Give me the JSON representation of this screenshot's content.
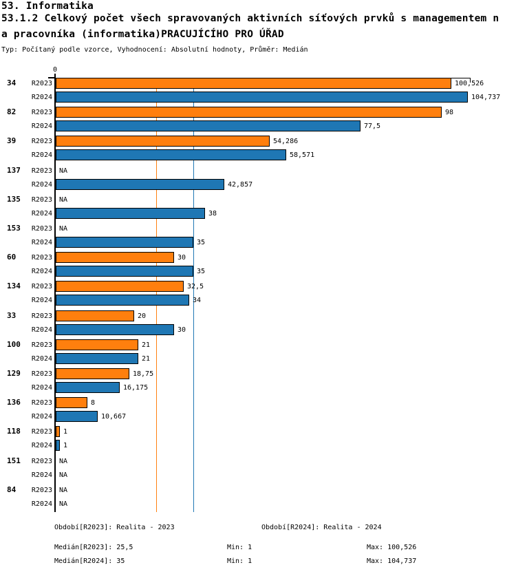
{
  "header": {
    "title": "53. Informatika",
    "subtitle_line1": "53.1.2 Celkový počet všech spravovaných aktivních síťových prvků s managementem n",
    "subtitle_line2": "a pracovníka (informatika)PRACUJÍCÍHO PRO ÚŘAD",
    "meta": "Typ: Počítaný podle vzorce, Vyhodnocení: Absolutní hodnoty, Průměr: Medián"
  },
  "chart_data": {
    "type": "bar",
    "orientation": "horizontal",
    "x_axis": {
      "zero_label": "0",
      "min": 0,
      "max": 104.737
    },
    "na_label": "NA",
    "series": [
      {
        "name": "R2023",
        "color": "#ff7f0e",
        "median": 25.5
      },
      {
        "name": "R2024",
        "color": "#1f77b4",
        "median": 35
      }
    ],
    "groups": [
      {
        "label": "34",
        "values": [
          100.526,
          104.737
        ],
        "value_labels": [
          "100,526",
          "104,737"
        ]
      },
      {
        "label": "82",
        "values": [
          98,
          77.5
        ],
        "value_labels": [
          "98",
          "77,5"
        ]
      },
      {
        "label": "39",
        "values": [
          54.286,
          58.571
        ],
        "value_labels": [
          "54,286",
          "58,571"
        ]
      },
      {
        "label": "137",
        "values": [
          null,
          42.857
        ],
        "value_labels": [
          "NA",
          "42,857"
        ]
      },
      {
        "label": "135",
        "values": [
          null,
          38
        ],
        "value_labels": [
          "NA",
          "38"
        ]
      },
      {
        "label": "153",
        "values": [
          null,
          35
        ],
        "value_labels": [
          "NA",
          "35"
        ]
      },
      {
        "label": "60",
        "values": [
          30,
          35
        ],
        "value_labels": [
          "30",
          "35"
        ]
      },
      {
        "label": "134",
        "values": [
          32.5,
          34
        ],
        "value_labels": [
          "32,5",
          "34"
        ]
      },
      {
        "label": "33",
        "values": [
          20,
          30
        ],
        "value_labels": [
          "20",
          "30"
        ]
      },
      {
        "label": "100",
        "values": [
          21,
          21
        ],
        "value_labels": [
          "21",
          "21"
        ]
      },
      {
        "label": "129",
        "values": [
          18.75,
          16.175
        ],
        "value_labels": [
          "18,75",
          "16,175"
        ]
      },
      {
        "label": "136",
        "values": [
          8,
          10.667
        ],
        "value_labels": [
          "8",
          "10,667"
        ]
      },
      {
        "label": "118",
        "values": [
          1,
          1
        ],
        "value_labels": [
          "1",
          "1"
        ]
      },
      {
        "label": "151",
        "values": [
          null,
          null
        ],
        "value_labels": [
          "NA",
          "NA"
        ]
      },
      {
        "label": "84",
        "values": [
          null,
          null
        ],
        "value_labels": [
          "NA",
          "NA"
        ]
      }
    ]
  },
  "footer": {
    "period_r2023": "Období[R2023]: Realita - 2023",
    "period_r2024": "Období[R2024]: Realita - 2024",
    "median_r2023": "Medián[R2023]: 25,5",
    "min_r2023": "Min: 1",
    "max_r2023": "Max: 100,526",
    "median_r2024": "Medián[R2024]: 35",
    "min_r2024": "Min: 1",
    "max_r2024": "Max: 104,737"
  }
}
